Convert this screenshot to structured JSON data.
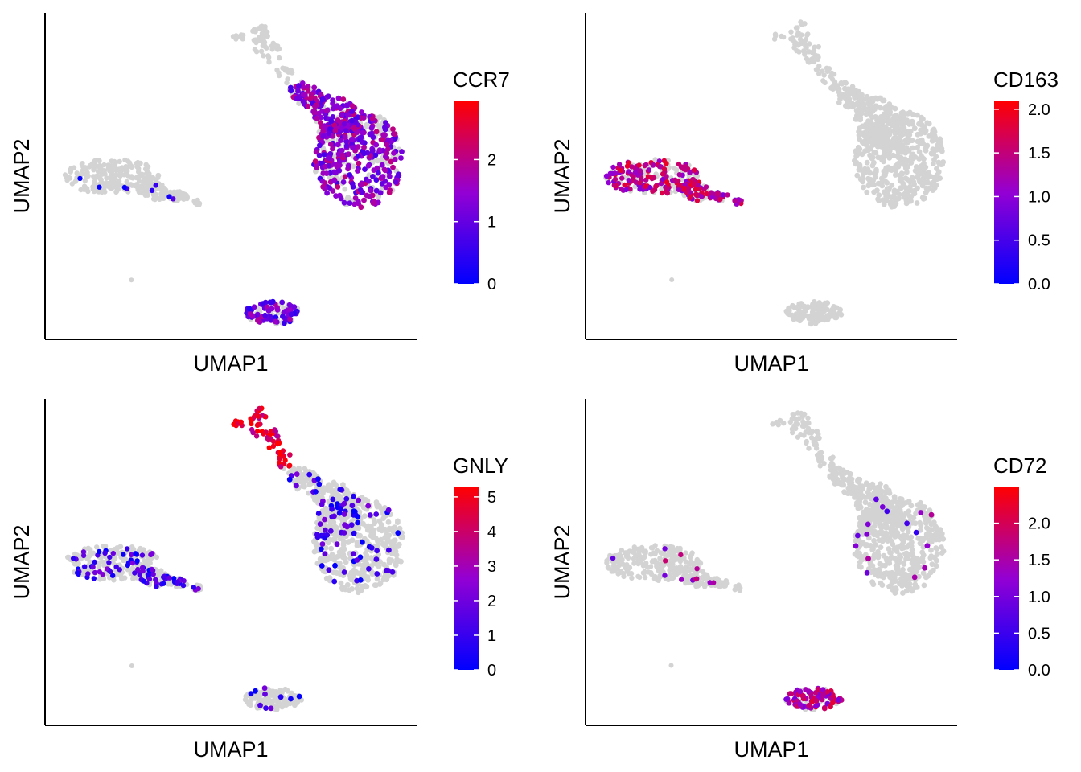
{
  "colors": {
    "low": "#0000FF",
    "mid": "#9400D3",
    "high": "#FF0000",
    "na_points": "#D3D3D3",
    "axis": "#000000"
  },
  "chart_data": [
    {
      "type": "scatter",
      "feature": "CCR7",
      "xlabel": "UMAP1",
      "ylabel": "UMAP2",
      "legend_title": "CCR7",
      "color_scale": {
        "min": 0,
        "max": 2.95,
        "ticks": [
          "0",
          "1",
          "2"
        ]
      },
      "expression_by_cluster": {
        "t_cells": 1.4,
        "nk_tip": 0.0,
        "monocytes": 0.15,
        "b_cells": 1.1,
        "isolated": 0.0
      },
      "expressing_fraction": {
        "t_cells": 0.65,
        "nk_tip": 0.02,
        "monocytes": 0.04,
        "b_cells": 0.6,
        "isolated": 0.0
      }
    },
    {
      "type": "scatter",
      "feature": "CD163",
      "xlabel": "UMAP1",
      "ylabel": "UMAP2",
      "legend_title": "CD163",
      "color_scale": {
        "min": 0,
        "max": 2.1,
        "ticks": [
          "0.0",
          "0.5",
          "1.0",
          "1.5",
          "2.0"
        ]
      },
      "expression_by_cluster": {
        "t_cells": 0.0,
        "nk_tip": 0.0,
        "monocytes": 1.4,
        "b_cells": 0.0,
        "isolated": 0.0
      },
      "expressing_fraction": {
        "t_cells": 0.0,
        "nk_tip": 0.0,
        "monocytes": 0.6,
        "b_cells": 0.0,
        "isolated": 0.0
      }
    },
    {
      "type": "scatter",
      "feature": "GNLY",
      "xlabel": "UMAP1",
      "ylabel": "UMAP2",
      "legend_title": "GNLY",
      "color_scale": {
        "min": 0,
        "max": 5.3,
        "ticks": [
          "0",
          "1",
          "2",
          "3",
          "4",
          "5"
        ]
      },
      "expression_by_cluster": {
        "t_cells": 1.0,
        "nk_tip": 4.6,
        "monocytes": 1.0,
        "b_cells": 0.8,
        "isolated": 0.0
      },
      "expressing_fraction": {
        "t_cells": 0.1,
        "nk_tip": 0.95,
        "monocytes": 0.28,
        "b_cells": 0.12,
        "isolated": 0.0
      }
    },
    {
      "type": "scatter",
      "feature": "CD72",
      "xlabel": "UMAP1",
      "ylabel": "UMAP2",
      "legend_title": "CD72",
      "color_scale": {
        "min": 0,
        "max": 2.5,
        "ticks": [
          "0.0",
          "0.5",
          "1.0",
          "1.5",
          "2.0"
        ]
      },
      "expression_by_cluster": {
        "t_cells": 1.0,
        "nk_tip": 0.8,
        "monocytes": 1.3,
        "b_cells": 1.6,
        "isolated": 0.0
      },
      "expressing_fraction": {
        "t_cells": 0.03,
        "nk_tip": 0.02,
        "monocytes": 0.04,
        "b_cells": 0.75,
        "isolated": 0.0
      }
    }
  ]
}
